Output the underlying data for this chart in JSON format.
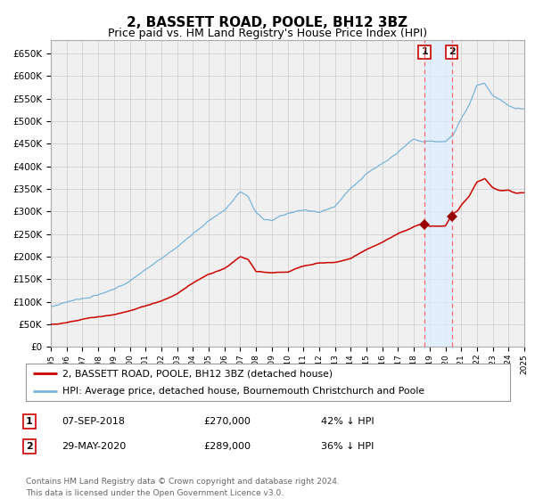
{
  "title": "2, BASSETT ROAD, POOLE, BH12 3BZ",
  "subtitle": "Price paid vs. HM Land Registry's House Price Index (HPI)",
  "legend_line1": "2, BASSETT ROAD, POOLE, BH12 3BZ (detached house)",
  "legend_line2": "HPI: Average price, detached house, Bournemouth Christchurch and Poole",
  "transaction1_date": "07-SEP-2018",
  "transaction1_price": "£270,000",
  "transaction1_pct": "42% ↓ HPI",
  "transaction2_date": "29-MAY-2020",
  "transaction2_price": "£289,000",
  "transaction2_pct": "36% ↓ HPI",
  "footnote1": "Contains HM Land Registry data © Crown copyright and database right 2024.",
  "footnote2": "This data is licensed under the Open Government Licence v3.0.",
  "hpi_color": "#7ab4d8",
  "property_color": "#cc0000",
  "marker_color": "#990000",
  "vline_color": "#ff6666",
  "shade_color": "#ddeeff",
  "grid_color": "#cccccc",
  "bg_color": "#ffffff",
  "plot_bg_color": "#f0f0f0",
  "ylim": [
    0,
    680000
  ],
  "yticks": [
    0,
    50000,
    100000,
    150000,
    200000,
    250000,
    300000,
    350000,
    400000,
    450000,
    500000,
    550000,
    600000,
    650000
  ],
  "xmin": 1995,
  "xmax": 2025,
  "transaction1_year": 2018.68,
  "transaction1_value": 270000,
  "transaction2_year": 2020.41,
  "transaction2_value": 289000,
  "key_times_hpi": [
    1995,
    1996,
    1997,
    1998,
    1999,
    2000,
    2001,
    2002,
    2003,
    2004,
    2005,
    2006,
    2007,
    2007.5,
    2008,
    2008.5,
    2009,
    2010,
    2011,
    2012,
    2013,
    2014,
    2015,
    2016,
    2017,
    2018,
    2018.5,
    2019,
    2019.5,
    2020,
    2020.5,
    2021,
    2021.5,
    2022,
    2022.5,
    2023,
    2023.5,
    2024,
    2024.5,
    2025
  ],
  "key_vals_hpi": [
    88000,
    100000,
    110000,
    120000,
    130000,
    150000,
    175000,
    200000,
    225000,
    255000,
    285000,
    305000,
    345000,
    330000,
    295000,
    278000,
    275000,
    290000,
    300000,
    295000,
    310000,
    350000,
    385000,
    405000,
    430000,
    458000,
    452000,
    455000,
    453000,
    453000,
    468000,
    505000,
    535000,
    578000,
    582000,
    558000,
    548000,
    535000,
    528000,
    525000
  ],
  "key_times_prop": [
    1995,
    1996,
    1997,
    1998,
    1999,
    2000,
    2001,
    2002,
    2003,
    2004,
    2005,
    2006,
    2007,
    2007.5,
    2008,
    2009,
    2010,
    2011,
    2012,
    2013,
    2014,
    2015,
    2016,
    2017,
    2018,
    2018.68,
    2019,
    2019.5,
    2020,
    2020.41,
    2020.8,
    2021,
    2021.5,
    2022,
    2022.5,
    2023,
    2023.5,
    2024,
    2024.5,
    2025
  ],
  "key_vals_prop": [
    50000,
    53000,
    60000,
    67000,
    72000,
    80000,
    90000,
    100000,
    115000,
    140000,
    160000,
    172000,
    198000,
    192000,
    165000,
    161000,
    162000,
    175000,
    182000,
    183000,
    192000,
    212000,
    228000,
    248000,
    263000,
    270000,
    263000,
    262000,
    263000,
    289000,
    298000,
    308000,
    328000,
    360000,
    368000,
    348000,
    342000,
    343000,
    338000,
    338000
  ]
}
